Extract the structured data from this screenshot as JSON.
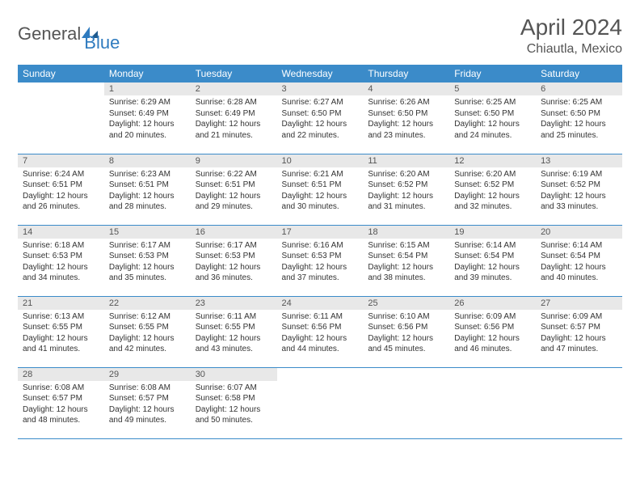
{
  "brand": {
    "name1": "General",
    "name2": "Blue"
  },
  "title": "April 2024",
  "location": "Chiautla, Mexico",
  "colors": {
    "header_bg": "#3b8bc9",
    "header_text": "#ffffff",
    "daynum_bg": "#e8e8e8",
    "text": "#333333",
    "rule": "#3b8bc9",
    "brand_blue": "#2f7bbf"
  },
  "weekdays": [
    "Sunday",
    "Monday",
    "Tuesday",
    "Wednesday",
    "Thursday",
    "Friday",
    "Saturday"
  ],
  "weeks": [
    [
      {
        "day": "",
        "lines": [
          "",
          "",
          "",
          ""
        ]
      },
      {
        "day": "1",
        "lines": [
          "Sunrise: 6:29 AM",
          "Sunset: 6:49 PM",
          "Daylight: 12 hours",
          "and 20 minutes."
        ]
      },
      {
        "day": "2",
        "lines": [
          "Sunrise: 6:28 AM",
          "Sunset: 6:49 PM",
          "Daylight: 12 hours",
          "and 21 minutes."
        ]
      },
      {
        "day": "3",
        "lines": [
          "Sunrise: 6:27 AM",
          "Sunset: 6:50 PM",
          "Daylight: 12 hours",
          "and 22 minutes."
        ]
      },
      {
        "day": "4",
        "lines": [
          "Sunrise: 6:26 AM",
          "Sunset: 6:50 PM",
          "Daylight: 12 hours",
          "and 23 minutes."
        ]
      },
      {
        "day": "5",
        "lines": [
          "Sunrise: 6:25 AM",
          "Sunset: 6:50 PM",
          "Daylight: 12 hours",
          "and 24 minutes."
        ]
      },
      {
        "day": "6",
        "lines": [
          "Sunrise: 6:25 AM",
          "Sunset: 6:50 PM",
          "Daylight: 12 hours",
          "and 25 minutes."
        ]
      }
    ],
    [
      {
        "day": "7",
        "lines": [
          "Sunrise: 6:24 AM",
          "Sunset: 6:51 PM",
          "Daylight: 12 hours",
          "and 26 minutes."
        ]
      },
      {
        "day": "8",
        "lines": [
          "Sunrise: 6:23 AM",
          "Sunset: 6:51 PM",
          "Daylight: 12 hours",
          "and 28 minutes."
        ]
      },
      {
        "day": "9",
        "lines": [
          "Sunrise: 6:22 AM",
          "Sunset: 6:51 PM",
          "Daylight: 12 hours",
          "and 29 minutes."
        ]
      },
      {
        "day": "10",
        "lines": [
          "Sunrise: 6:21 AM",
          "Sunset: 6:51 PM",
          "Daylight: 12 hours",
          "and 30 minutes."
        ]
      },
      {
        "day": "11",
        "lines": [
          "Sunrise: 6:20 AM",
          "Sunset: 6:52 PM",
          "Daylight: 12 hours",
          "and 31 minutes."
        ]
      },
      {
        "day": "12",
        "lines": [
          "Sunrise: 6:20 AM",
          "Sunset: 6:52 PM",
          "Daylight: 12 hours",
          "and 32 minutes."
        ]
      },
      {
        "day": "13",
        "lines": [
          "Sunrise: 6:19 AM",
          "Sunset: 6:52 PM",
          "Daylight: 12 hours",
          "and 33 minutes."
        ]
      }
    ],
    [
      {
        "day": "14",
        "lines": [
          "Sunrise: 6:18 AM",
          "Sunset: 6:53 PM",
          "Daylight: 12 hours",
          "and 34 minutes."
        ]
      },
      {
        "day": "15",
        "lines": [
          "Sunrise: 6:17 AM",
          "Sunset: 6:53 PM",
          "Daylight: 12 hours",
          "and 35 minutes."
        ]
      },
      {
        "day": "16",
        "lines": [
          "Sunrise: 6:17 AM",
          "Sunset: 6:53 PM",
          "Daylight: 12 hours",
          "and 36 minutes."
        ]
      },
      {
        "day": "17",
        "lines": [
          "Sunrise: 6:16 AM",
          "Sunset: 6:53 PM",
          "Daylight: 12 hours",
          "and 37 minutes."
        ]
      },
      {
        "day": "18",
        "lines": [
          "Sunrise: 6:15 AM",
          "Sunset: 6:54 PM",
          "Daylight: 12 hours",
          "and 38 minutes."
        ]
      },
      {
        "day": "19",
        "lines": [
          "Sunrise: 6:14 AM",
          "Sunset: 6:54 PM",
          "Daylight: 12 hours",
          "and 39 minutes."
        ]
      },
      {
        "day": "20",
        "lines": [
          "Sunrise: 6:14 AM",
          "Sunset: 6:54 PM",
          "Daylight: 12 hours",
          "and 40 minutes."
        ]
      }
    ],
    [
      {
        "day": "21",
        "lines": [
          "Sunrise: 6:13 AM",
          "Sunset: 6:55 PM",
          "Daylight: 12 hours",
          "and 41 minutes."
        ]
      },
      {
        "day": "22",
        "lines": [
          "Sunrise: 6:12 AM",
          "Sunset: 6:55 PM",
          "Daylight: 12 hours",
          "and 42 minutes."
        ]
      },
      {
        "day": "23",
        "lines": [
          "Sunrise: 6:11 AM",
          "Sunset: 6:55 PM",
          "Daylight: 12 hours",
          "and 43 minutes."
        ]
      },
      {
        "day": "24",
        "lines": [
          "Sunrise: 6:11 AM",
          "Sunset: 6:56 PM",
          "Daylight: 12 hours",
          "and 44 minutes."
        ]
      },
      {
        "day": "25",
        "lines": [
          "Sunrise: 6:10 AM",
          "Sunset: 6:56 PM",
          "Daylight: 12 hours",
          "and 45 minutes."
        ]
      },
      {
        "day": "26",
        "lines": [
          "Sunrise: 6:09 AM",
          "Sunset: 6:56 PM",
          "Daylight: 12 hours",
          "and 46 minutes."
        ]
      },
      {
        "day": "27",
        "lines": [
          "Sunrise: 6:09 AM",
          "Sunset: 6:57 PM",
          "Daylight: 12 hours",
          "and 47 minutes."
        ]
      }
    ],
    [
      {
        "day": "28",
        "lines": [
          "Sunrise: 6:08 AM",
          "Sunset: 6:57 PM",
          "Daylight: 12 hours",
          "and 48 minutes."
        ]
      },
      {
        "day": "29",
        "lines": [
          "Sunrise: 6:08 AM",
          "Sunset: 6:57 PM",
          "Daylight: 12 hours",
          "and 49 minutes."
        ]
      },
      {
        "day": "30",
        "lines": [
          "Sunrise: 6:07 AM",
          "Sunset: 6:58 PM",
          "Daylight: 12 hours",
          "and 50 minutes."
        ]
      },
      {
        "day": "",
        "lines": [
          "",
          "",
          "",
          ""
        ]
      },
      {
        "day": "",
        "lines": [
          "",
          "",
          "",
          ""
        ]
      },
      {
        "day": "",
        "lines": [
          "",
          "",
          "",
          ""
        ]
      },
      {
        "day": "",
        "lines": [
          "",
          "",
          "",
          ""
        ]
      }
    ]
  ]
}
